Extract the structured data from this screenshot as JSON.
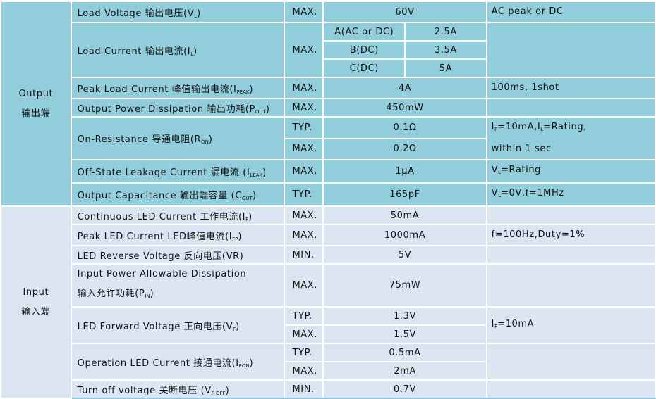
{
  "colors": {
    "output_bg": "#92CDDC",
    "input_bg": "#DBE5F1",
    "grid": "#FFFFFF"
  },
  "groups": [
    {
      "key": "output",
      "label_en": "Output",
      "label_cn": "输出端",
      "params": [
        {
          "pre": "Load Voltage 输出电压(V",
          "sub": "L",
          "post": ")",
          "conds": [
            {
              "type": "MAX.",
              "value": "60V"
            }
          ],
          "note": "AC peak or DC"
        },
        {
          "pre": "Load Current 输出电流(I",
          "sub": "L",
          "post": ")",
          "conds": [
            {
              "type": "MAX.",
              "variants": [
                {
                  "label": "A(AC or DC)",
                  "value": "2.5A"
                },
                {
                  "label": "B(DC)",
                  "value": "3.5A"
                },
                {
                  "label": "C(DC)",
                  "value": "5A"
                }
              ]
            }
          ],
          "note": ""
        },
        {
          "pre": "Peak Load Current 峰值输出电流(I",
          "sub": "PEAK",
          "post": ")",
          "conds": [
            {
              "type": "MAX.",
              "value": "4A"
            }
          ],
          "note": "100ms, 1shot"
        },
        {
          "pre": "Output Power Dissipation 输出功耗(P",
          "sub": "OUT",
          "post": ")",
          "conds": [
            {
              "type": "MAX.",
              "value": "450mW"
            }
          ],
          "note": ""
        },
        {
          "pre": "On-Resistance 导通电阻(R",
          "sub": "ON",
          "post": ")",
          "conds": [
            {
              "type": "TYP.",
              "value": "0.1Ω"
            },
            {
              "type": "MAX.",
              "value": "0.2Ω"
            }
          ],
          "note_parts": [
            {
              "pre": "I",
              "sub": "F",
              "post": "=10mA,I"
            },
            {
              "pre": "",
              "sub": "L",
              "post": "=Rating,\nwithin 1 sec"
            }
          ]
        },
        {
          "pre": "Off-State Leakage Current 漏电流 (I",
          "sub": "LEAK",
          "post": ")",
          "conds": [
            {
              "type": "MAX.",
              "value": "1μA"
            }
          ],
          "note_parts": [
            {
              "pre": "V",
              "sub": "L",
              "post": "=Rating"
            }
          ]
        },
        {
          "pre": "Output Capacitance 输出端容量 (C",
          "sub": "OUT",
          "post": ")",
          "conds": [
            {
              "type": "TYP.",
              "value": "165pF"
            }
          ],
          "note_parts": [
            {
              "pre": "V",
              "sub": "L",
              "post": "=0V,f=1MHz"
            }
          ]
        }
      ]
    },
    {
      "key": "input",
      "label_en": "Input",
      "label_cn": "输入端",
      "params": [
        {
          "pre": "Continuous LED Current 工作电流(I",
          "sub": "F",
          "post": ")",
          "conds": [
            {
              "type": "MAX.",
              "value": "50mA"
            }
          ],
          "note": ""
        },
        {
          "pre": "Peak LED Current LED峰值电流(I",
          "sub": "FP",
          "post": ")",
          "conds": [
            {
              "type": "MAX.",
              "value": "1000mA"
            }
          ],
          "note": "f=100Hz,Duty=1%"
        },
        {
          "pre": "LED Reverse Voltage 反向电压(VR)",
          "sub": "",
          "post": "",
          "conds": [
            {
              "type": "MIN.",
              "value": "5V"
            }
          ],
          "note": ""
        },
        {
          "pre": "Input Power Allowable Dissipation\n输入允许功耗(P",
          "sub": "IN",
          "post": ")",
          "conds": [
            {
              "type": "MAX.",
              "value": "75mW"
            }
          ],
          "note": ""
        },
        {
          "pre": "LED Forward Voltage 正向电压(V",
          "sub": "F",
          "post": ")",
          "conds": [
            {
              "type": "TYP.",
              "value": "1.3V"
            },
            {
              "type": "MAX.",
              "value": "1.5V"
            }
          ],
          "note_parts": [
            {
              "pre": "I",
              "sub": "F",
              "post": "=10mA"
            }
          ]
        },
        {
          "pre": "Operation LED Current 接通电流(I",
          "sub": "FON",
          "post": ")",
          "conds": [
            {
              "type": "TYP.",
              "value": "0.5mA"
            },
            {
              "type": "MAX.",
              "value": "2mA"
            }
          ],
          "note": ""
        },
        {
          "pre": "Turn off voltage 关断电压 (V",
          "sub": "F OFF",
          "post": ")",
          "conds": [
            {
              "type": "MIN.",
              "value": "0.7V"
            }
          ],
          "note": ""
        }
      ]
    }
  ]
}
